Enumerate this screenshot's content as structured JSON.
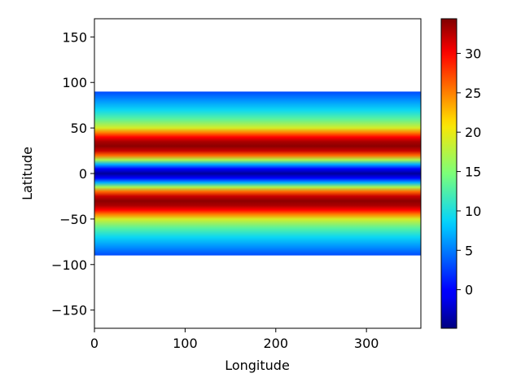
{
  "chart_data": {
    "type": "heatmap",
    "title": "",
    "xlabel": "Longitude",
    "ylabel": "Latitude",
    "xlim": [
      0,
      360
    ],
    "ylim": [
      -170,
      170
    ],
    "xticks": [
      0,
      100,
      200,
      300
    ],
    "yticks": [
      -150,
      -100,
      -50,
      0,
      50,
      100,
      150
    ],
    "grid": false,
    "colormap": "jet",
    "colorbar": {
      "vmin": -4.9,
      "vmax": 34.4,
      "ticks": [
        0,
        5,
        10,
        15,
        20,
        25,
        30
      ]
    },
    "data_extent": {
      "lon": [
        0,
        360
      ],
      "lat": [
        -90,
        90
      ]
    },
    "profile_description": "values vary with latitude only (constant along longitude)",
    "latitude": [
      -90,
      -80,
      -70,
      -60,
      -50,
      -45,
      -40,
      -35,
      -30,
      -25,
      -20,
      -15,
      -10,
      -5,
      0,
      5,
      10,
      15,
      20,
      25,
      30,
      35,
      40,
      45,
      50,
      60,
      70,
      80,
      90
    ],
    "values": [
      3,
      6,
      9,
      13,
      19,
      25,
      30,
      33,
      34,
      32,
      26,
      17,
      7,
      0,
      -4,
      0,
      7,
      17,
      26,
      32,
      34,
      33,
      30,
      25,
      19,
      13,
      9,
      6,
      3
    ]
  }
}
